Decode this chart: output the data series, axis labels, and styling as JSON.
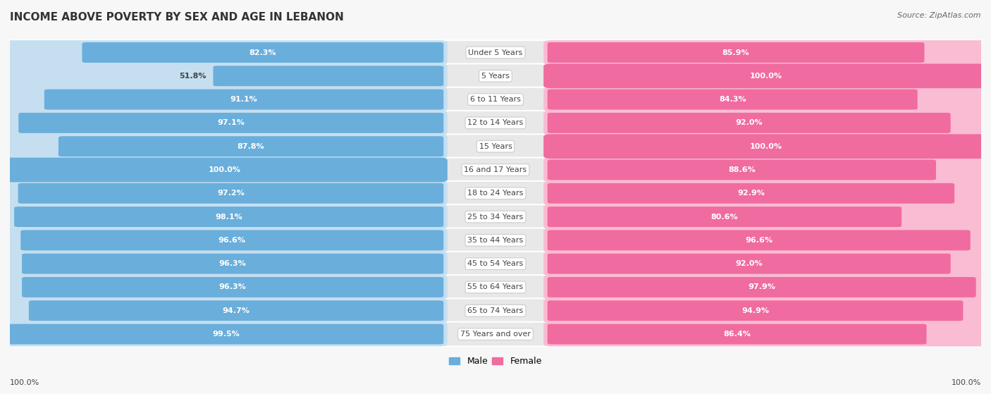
{
  "title": "INCOME ABOVE POVERTY BY SEX AND AGE IN LEBANON",
  "source": "Source: ZipAtlas.com",
  "categories": [
    "Under 5 Years",
    "5 Years",
    "6 to 11 Years",
    "12 to 14 Years",
    "15 Years",
    "16 and 17 Years",
    "18 to 24 Years",
    "25 to 34 Years",
    "35 to 44 Years",
    "45 to 54 Years",
    "55 to 64 Years",
    "65 to 74 Years",
    "75 Years and over"
  ],
  "male_values": [
    82.3,
    51.8,
    91.1,
    97.1,
    87.8,
    100.0,
    97.2,
    98.1,
    96.6,
    96.3,
    96.3,
    94.7,
    99.5
  ],
  "female_values": [
    85.9,
    100.0,
    84.3,
    92.0,
    100.0,
    88.6,
    92.9,
    80.6,
    96.6,
    92.0,
    97.9,
    94.9,
    86.4
  ],
  "male_dark": "#6aaedb",
  "male_light": "#c5dff0",
  "female_dark": "#f06ba0",
  "female_light": "#f9bcd2",
  "row_bg": "#e8e8e8",
  "fig_bg": "#f7f7f7",
  "label_bg": "#ffffff",
  "text_dark": "#444444",
  "text_white": "#ffffff",
  "legend_male": "#6aaedb",
  "legend_female": "#f06ba0",
  "title_fontsize": 11,
  "cat_fontsize": 8,
  "val_fontsize": 8,
  "source_fontsize": 8
}
